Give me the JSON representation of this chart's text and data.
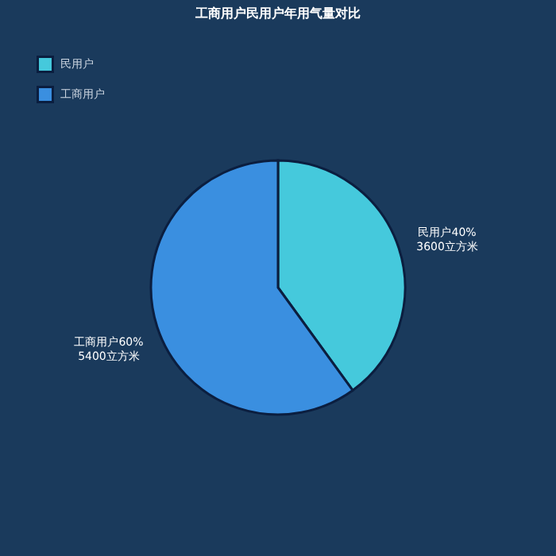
{
  "chart_data": {
    "type": "pie",
    "title": "工商用户民用户年用气量对比",
    "categories": [
      "民用户",
      "工商用户"
    ],
    "values": [
      3600,
      5400
    ],
    "colors": [
      "#45c9dc",
      "#3a8fe0"
    ],
    "value_labels": [
      "民用户40%\n3600立方米",
      "工商用户60%\n5400立方米"
    ],
    "legend": "top left"
  }
}
